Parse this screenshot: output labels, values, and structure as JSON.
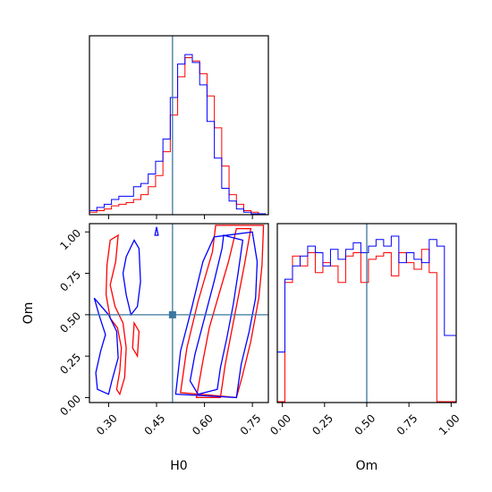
{
  "colors": {
    "series_a": "#ff0000",
    "series_b": "#0000ff",
    "truth": "#3b76a0",
    "axis": "#000000"
  },
  "chart_data": [
    {
      "type": "histogram",
      "panel": "top-left",
      "param": "H0",
      "xlim": [
        0.24,
        0.8
      ],
      "bin_edges": [
        0.24,
        0.263,
        0.286,
        0.309,
        0.332,
        0.355,
        0.378,
        0.401,
        0.424,
        0.447,
        0.47,
        0.493,
        0.516,
        0.539,
        0.562,
        0.585,
        0.608,
        0.631,
        0.654,
        0.677,
        0.7,
        0.723,
        0.746,
        0.769,
        0.792
      ],
      "series": [
        {
          "color_key": "series_a",
          "values": [
            0.01,
            0.02,
            0.03,
            0.05,
            0.06,
            0.07,
            0.09,
            0.12,
            0.17,
            0.24,
            0.39,
            0.62,
            0.86,
            0.98,
            0.96,
            0.88,
            0.74,
            0.54,
            0.3,
            0.12,
            0.06,
            0.02,
            0.01,
            0.0
          ]
        },
        {
          "color_key": "series_b",
          "values": [
            0.02,
            0.04,
            0.06,
            0.09,
            0.11,
            0.11,
            0.17,
            0.19,
            0.25,
            0.33,
            0.47,
            0.73,
            0.94,
            1.0,
            0.95,
            0.81,
            0.58,
            0.35,
            0.16,
            0.08,
            0.03,
            0.01,
            0.0,
            0.0
          ]
        }
      ],
      "truth_x": 0.5
    },
    {
      "type": "contour",
      "panel": "bottom-left",
      "xlabel": "H0",
      "ylabel": "Om",
      "xlim": [
        0.24,
        0.8
      ],
      "ylim": [
        -0.03,
        1.05
      ],
      "xticks": [
        "0.30",
        "0.45",
        "0.60",
        "0.75"
      ],
      "yticks": [
        "0.00",
        "0.25",
        "0.50",
        "0.75",
        "1.00"
      ],
      "truth": [
        0.5,
        0.5
      ],
      "series": [
        {
          "color_key": "series_a",
          "contours": [
            [
              [
                0.575,
                0.0
              ],
              [
                0.595,
                0.22
              ],
              [
                0.615,
                0.42
              ],
              [
                0.645,
                0.62
              ],
              [
                0.675,
                0.82
              ],
              [
                0.7,
                1.02
              ],
              [
                0.745,
                1.02
              ],
              [
                0.725,
                0.8
              ],
              [
                0.705,
                0.6
              ],
              [
                0.685,
                0.4
              ],
              [
                0.665,
                0.2
              ],
              [
                0.65,
                0.0
              ]
            ],
            [
              [
                0.525,
                0.03
              ],
              [
                0.545,
                0.3
              ],
              [
                0.58,
                0.58
              ],
              [
                0.625,
                0.88
              ],
              [
                0.635,
                1.04
              ],
              [
                0.785,
                1.04
              ],
              [
                0.78,
                0.8
              ],
              [
                0.77,
                0.6
              ],
              [
                0.745,
                0.34
              ],
              [
                0.72,
                0.14
              ],
              [
                0.7,
                0.0
              ]
            ],
            [
              [
                0.305,
                0.48
              ],
              [
                0.328,
                0.42
              ],
              [
                0.34,
                0.3
              ],
              [
                0.335,
                0.16
              ],
              [
                0.325,
                0.05
              ],
              [
                0.335,
                0.02
              ],
              [
                0.35,
                0.12
              ],
              [
                0.355,
                0.3
              ],
              [
                0.345,
                0.45
              ],
              [
                0.32,
                0.55
              ],
              [
                0.305,
                0.68
              ],
              [
                0.322,
                0.82
              ],
              [
                0.33,
                0.98
              ],
              [
                0.305,
                0.95
              ],
              [
                0.295,
                0.8
              ],
              [
                0.292,
                0.62
              ]
            ],
            [
              [
                0.375,
                0.3
              ],
              [
                0.39,
                0.25
              ],
              [
                0.395,
                0.4
              ],
              [
                0.38,
                0.45
              ]
            ]
          ]
        },
        {
          "color_key": "series_b",
          "contours": [
            [
              [
                0.555,
                0.1
              ],
              [
                0.57,
                0.26
              ],
              [
                0.6,
                0.48
              ],
              [
                0.63,
                0.7
              ],
              [
                0.655,
                0.9
              ],
              [
                0.66,
                0.98
              ],
              [
                0.72,
                0.95
              ],
              [
                0.705,
                0.75
              ],
              [
                0.69,
                0.56
              ],
              [
                0.67,
                0.36
              ],
              [
                0.65,
                0.18
              ],
              [
                0.64,
                0.05
              ],
              [
                0.58,
                0.02
              ]
            ],
            [
              [
                0.51,
                0.02
              ],
              [
                0.525,
                0.28
              ],
              [
                0.56,
                0.54
              ],
              [
                0.595,
                0.82
              ],
              [
                0.63,
                0.97
              ],
              [
                0.75,
                1.0
              ],
              [
                0.765,
                0.82
              ],
              [
                0.76,
                0.6
              ],
              [
                0.74,
                0.4
              ],
              [
                0.715,
                0.2
              ],
              [
                0.7,
                0.0
              ]
            ],
            [
              [
                0.255,
                0.6
              ],
              [
                0.3,
                0.5
              ],
              [
                0.325,
                0.4
              ],
              [
                0.33,
                0.24
              ],
              [
                0.31,
                0.1
              ],
              [
                0.3,
                0.02
              ],
              [
                0.265,
                0.05
              ],
              [
                0.26,
                0.15
              ],
              [
                0.275,
                0.28
              ],
              [
                0.29,
                0.38
              ],
              [
                0.27,
                0.5
              ]
            ],
            [
              [
                0.355,
                0.85
              ],
              [
                0.38,
                0.95
              ],
              [
                0.395,
                0.9
              ],
              [
                0.4,
                0.7
              ],
              [
                0.39,
                0.55
              ],
              [
                0.37,
                0.5
              ],
              [
                0.355,
                0.62
              ],
              [
                0.345,
                0.75
              ]
            ],
            [
              [
                0.445,
                0.98
              ],
              [
                0.45,
                1.03
              ],
              [
                0.455,
                0.98
              ]
            ]
          ]
        }
      ]
    },
    {
      "type": "histogram",
      "panel": "bottom-right",
      "xlabel": "Om",
      "param": "Om",
      "xlim": [
        -0.03,
        1.03
      ],
      "xticks": [
        "0.00",
        "0.25",
        "0.50",
        "0.75",
        "1.00"
      ],
      "bin_edges": [
        -0.03,
        0.015,
        0.06,
        0.105,
        0.15,
        0.195,
        0.24,
        0.285,
        0.33,
        0.375,
        0.42,
        0.465,
        0.51,
        0.555,
        0.6,
        0.645,
        0.69,
        0.735,
        0.78,
        0.825,
        0.87,
        0.915,
        0.96,
        1.005,
        1.03
      ],
      "series": [
        {
          "color_key": "series_a",
          "values": [
            0.0,
            0.72,
            0.88,
            0.82,
            0.9,
            0.78,
            0.84,
            0.82,
            0.72,
            0.88,
            0.9,
            0.72,
            0.86,
            0.88,
            0.9,
            0.76,
            0.9,
            0.84,
            0.8,
            0.92,
            0.78,
            0.0,
            0.0,
            0.0
          ]
        },
        {
          "color_key": "series_b",
          "values": [
            0.3,
            0.74,
            0.82,
            0.88,
            0.94,
            0.9,
            0.82,
            0.92,
            0.86,
            0.92,
            0.96,
            0.9,
            0.94,
            0.98,
            0.94,
            1.0,
            0.84,
            0.9,
            0.86,
            0.84,
            0.98,
            0.94,
            0.4,
            0.4
          ]
        }
      ],
      "truth_x": 0.5
    }
  ]
}
